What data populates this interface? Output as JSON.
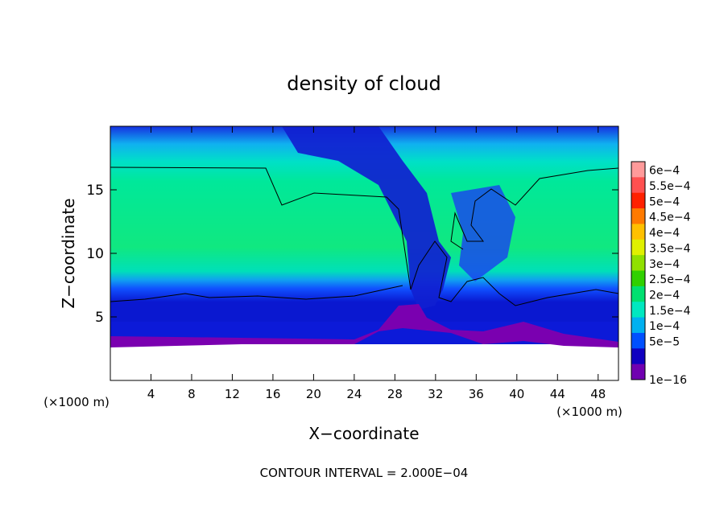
{
  "chart_data": {
    "type": "heatmap",
    "title": "density of cloud",
    "xlabel": "X−coordinate",
    "ylabel": "Z−coordinate",
    "x_unit_label": "(×1000 m)",
    "x_unit_label_right": "(×1000 m)",
    "xlim": [
      0,
      50
    ],
    "ylim": [
      0,
      20
    ],
    "xticks": [
      "4",
      "8",
      "12",
      "16",
      "20",
      "24",
      "28",
      "32",
      "36",
      "40",
      "44",
      "48"
    ],
    "yticks": [
      "5",
      "10",
      "15"
    ],
    "contour_interval_text": "CONTOUR INTERVAL = 2.000E−04",
    "colorbar": {
      "labels": [
        "6e−4",
        "5.5e−4",
        "5e−4",
        "4.5e−4",
        "4e−4",
        "3.5e−4",
        "3e−4",
        "2.5e−4",
        "2e−4",
        "1.5e−4",
        "1e−4",
        "5e−5",
        "1e−16"
      ],
      "colors": [
        "#ff9a9a",
        "#ff5050",
        "#ff2000",
        "#ff7a00",
        "#ffc000",
        "#e0f000",
        "#90e000",
        "#30d000",
        "#00e070",
        "#00e8c0",
        "#00b0f0",
        "#0050ff",
        "#1000c0",
        "#7000b0"
      ]
    }
  }
}
